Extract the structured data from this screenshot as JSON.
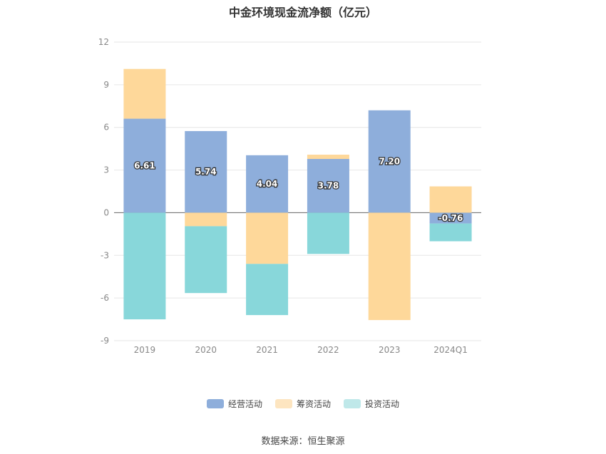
{
  "chart_data": {
    "type": "bar",
    "stacked": true,
    "title": "中金环境现金流净额（亿元）",
    "categories": [
      "2019",
      "2020",
      "2021",
      "2022",
      "2023",
      "2024Q1"
    ],
    "ylim": [
      -9,
      12
    ],
    "yticks": [
      12,
      9,
      6,
      3,
      0,
      -3,
      -6,
      -9
    ],
    "grid": true,
    "legend_position": "bottom",
    "series": [
      {
        "name": "经营活动",
        "color": "#8eaedb",
        "values": [
          6.61,
          5.74,
          4.04,
          3.78,
          7.2,
          -0.76
        ]
      },
      {
        "name": "筹资活动",
        "color": "#fed89a",
        "values": [
          3.5,
          -0.95,
          -3.6,
          0.3,
          -7.55,
          1.85
        ]
      },
      {
        "name": "投资活动",
        "color": "#88d7da",
        "values": [
          -7.5,
          -4.7,
          -3.6,
          -2.9,
          0,
          -1.25
        ]
      }
    ],
    "data_labels": [
      "6.61",
      "5.74",
      "4.04",
      "3.78",
      "7.20",
      "-0.76"
    ]
  },
  "legend": {
    "items": [
      {
        "label": "经营活动",
        "color": "#8eaedb"
      },
      {
        "label": "筹资活动",
        "color": "#fde5c0"
      },
      {
        "label": "投资活动",
        "color": "#bfe8e9"
      }
    ]
  },
  "source": "数据来源：恒生聚源"
}
